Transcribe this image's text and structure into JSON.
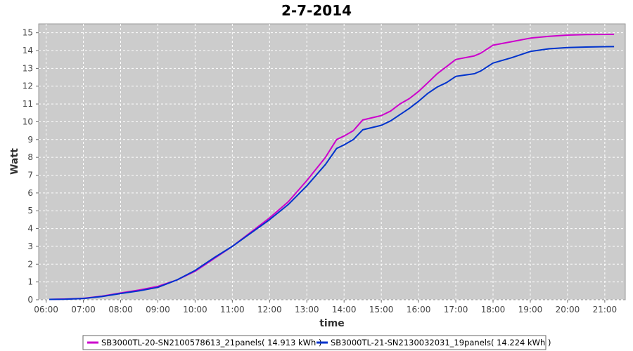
{
  "chart_data": {
    "type": "line",
    "title": "2-7-2014",
    "xlabel": "time",
    "ylabel": "Watt",
    "x_range_hours": [
      5.8,
      21.55
    ],
    "ylim": [
      0,
      15.5
    ],
    "x_ticks": [
      "06:00",
      "07:00",
      "08:00",
      "09:00",
      "10:00",
      "11:00",
      "12:00",
      "13:00",
      "14:00",
      "15:00",
      "16:00",
      "17:00",
      "18:00",
      "19:00",
      "20:00",
      "21:00"
    ],
    "y_ticks": [
      0,
      1,
      2,
      3,
      4,
      5,
      6,
      7,
      8,
      9,
      10,
      11,
      12,
      13,
      14,
      15
    ],
    "grid": true,
    "legend_position": "bottom",
    "series": [
      {
        "name": "SB3000TL-20-SN2100578613_21panels( 14.913 kWh )",
        "color": "#cc00cc",
        "points": [
          [
            "06:05",
            0.02
          ],
          [
            "06:30",
            0.04
          ],
          [
            "07:00",
            0.08
          ],
          [
            "07:30",
            0.2
          ],
          [
            "08:00",
            0.38
          ],
          [
            "08:30",
            0.55
          ],
          [
            "09:00",
            0.75
          ],
          [
            "09:30",
            1.1
          ],
          [
            "10:00",
            1.6
          ],
          [
            "10:30",
            2.3
          ],
          [
            "11:00",
            3.0
          ],
          [
            "11:30",
            3.8
          ],
          [
            "12:00",
            4.6
          ],
          [
            "12:30",
            5.5
          ],
          [
            "13:00",
            6.7
          ],
          [
            "13:30",
            8.0
          ],
          [
            "13:48",
            9.0
          ],
          [
            "14:00",
            9.2
          ],
          [
            "14:15",
            9.5
          ],
          [
            "14:30",
            10.1
          ],
          [
            "15:00",
            10.35
          ],
          [
            "15:15",
            10.6
          ],
          [
            "15:30",
            11.0
          ],
          [
            "15:45",
            11.3
          ],
          [
            "16:00",
            11.7
          ],
          [
            "16:15",
            12.2
          ],
          [
            "16:30",
            12.7
          ],
          [
            "16:45",
            13.1
          ],
          [
            "17:00",
            13.5
          ],
          [
            "17:30",
            13.7
          ],
          [
            "17:40",
            13.85
          ],
          [
            "18:00",
            14.3
          ],
          [
            "18:30",
            14.5
          ],
          [
            "19:00",
            14.7
          ],
          [
            "19:30",
            14.8
          ],
          [
            "20:00",
            14.87
          ],
          [
            "20:30",
            14.9
          ],
          [
            "21:00",
            14.91
          ],
          [
            "21:15",
            14.913
          ]
        ]
      },
      {
        "name": "SB3000TL-21-SN2130032031_19panels( 14.224 kWh )",
        "color": "#0033cc",
        "points": [
          [
            "06:05",
            0.02
          ],
          [
            "06:30",
            0.03
          ],
          [
            "07:00",
            0.07
          ],
          [
            "07:30",
            0.18
          ],
          [
            "08:00",
            0.35
          ],
          [
            "08:30",
            0.5
          ],
          [
            "09:00",
            0.7
          ],
          [
            "09:30",
            1.1
          ],
          [
            "10:00",
            1.65
          ],
          [
            "10:30",
            2.35
          ],
          [
            "11:00",
            3.0
          ],
          [
            "11:30",
            3.75
          ],
          [
            "12:00",
            4.5
          ],
          [
            "12:30",
            5.35
          ],
          [
            "13:00",
            6.4
          ],
          [
            "13:30",
            7.6
          ],
          [
            "13:48",
            8.5
          ],
          [
            "14:00",
            8.7
          ],
          [
            "14:15",
            9.0
          ],
          [
            "14:30",
            9.55
          ],
          [
            "15:00",
            9.8
          ],
          [
            "15:15",
            10.05
          ],
          [
            "15:30",
            10.4
          ],
          [
            "15:45",
            10.75
          ],
          [
            "16:00",
            11.15
          ],
          [
            "16:15",
            11.6
          ],
          [
            "16:30",
            11.95
          ],
          [
            "16:45",
            12.2
          ],
          [
            "17:00",
            12.55
          ],
          [
            "17:30",
            12.7
          ],
          [
            "17:40",
            12.85
          ],
          [
            "18:00",
            13.3
          ],
          [
            "18:30",
            13.6
          ],
          [
            "19:00",
            13.95
          ],
          [
            "19:30",
            14.1
          ],
          [
            "20:00",
            14.17
          ],
          [
            "20:30",
            14.2
          ],
          [
            "21:00",
            14.22
          ],
          [
            "21:15",
            14.224
          ]
        ]
      }
    ]
  }
}
